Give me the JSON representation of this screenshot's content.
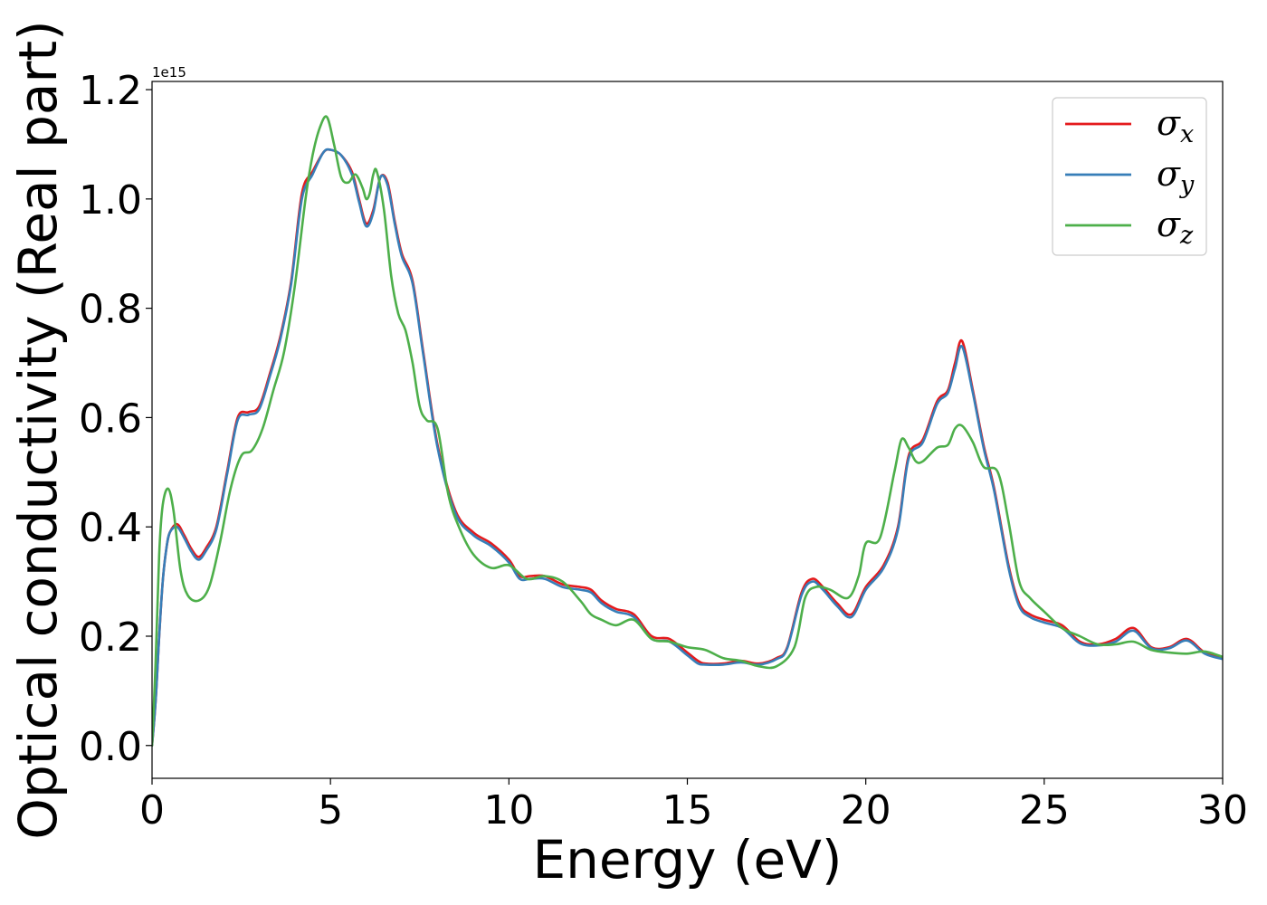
{
  "chart_data": {
    "type": "line",
    "xlabel": "Energy (eV)",
    "ylabel": "Optical conductivity (Real part)",
    "y_offset_text": "1e15",
    "y_scale_factor": 1000000000000000.0,
    "xlim": [
      0,
      30
    ],
    "ylim": [
      -0.06,
      1.215
    ],
    "x_ticks": [
      0,
      5,
      10,
      15,
      20,
      25,
      30
    ],
    "x_tick_labels": [
      "0",
      "5",
      "10",
      "15",
      "20",
      "25",
      "30"
    ],
    "y_ticks": [
      0.0,
      0.2,
      0.4,
      0.6,
      0.8,
      1.0,
      1.2
    ],
    "y_tick_labels": [
      "0.0",
      "0.2",
      "0.4",
      "0.6",
      "0.8",
      "1.0",
      "1.2"
    ],
    "grid": false,
    "legend_position": "top-right",
    "series": [
      {
        "name": "σx",
        "symbol": "σ",
        "subscript": "x",
        "color": "#e41a1c",
        "x": [
          0,
          0.1,
          0.2,
          0.3,
          0.4,
          0.5,
          0.7,
          0.9,
          1.1,
          1.3,
          1.5,
          1.8,
          2.1,
          2.4,
          2.7,
          3.0,
          3.3,
          3.6,
          3.9,
          4.2,
          4.5,
          4.8,
          5.0,
          5.3,
          5.6,
          5.8,
          6.0,
          6.2,
          6.4,
          6.6,
          6.8,
          7.0,
          7.3,
          7.6,
          8.0,
          8.5,
          9.0,
          9.5,
          10.0,
          10.3,
          10.6,
          11.0,
          11.5,
          12.0,
          12.3,
          12.6,
          13.0,
          13.5,
          14.0,
          14.5,
          15.0,
          15.3,
          15.5,
          16.0,
          16.5,
          17.0,
          17.5,
          17.8,
          18.2,
          18.5,
          18.8,
          19.2,
          19.6,
          20.0,
          20.5,
          20.9,
          21.2,
          21.6,
          22.0,
          22.3,
          22.5,
          22.7,
          23.0,
          23.3,
          23.6,
          24.0,
          24.3,
          24.6,
          25.0,
          25.5,
          26.0,
          26.5,
          27.0,
          27.5,
          28.0,
          28.5,
          29.0,
          29.5,
          30.0
        ],
        "y": [
          0.0,
          0.08,
          0.2,
          0.3,
          0.36,
          0.39,
          0.405,
          0.385,
          0.36,
          0.345,
          0.36,
          0.4,
          0.5,
          0.6,
          0.61,
          0.62,
          0.68,
          0.75,
          0.85,
          1.01,
          1.05,
          1.085,
          1.09,
          1.08,
          1.05,
          1.0,
          0.955,
          0.98,
          1.04,
          1.03,
          0.96,
          0.9,
          0.85,
          0.72,
          0.55,
          0.43,
          0.39,
          0.37,
          0.34,
          0.31,
          0.31,
          0.31,
          0.295,
          0.29,
          0.285,
          0.265,
          0.25,
          0.24,
          0.2,
          0.195,
          0.17,
          0.155,
          0.15,
          0.15,
          0.155,
          0.15,
          0.16,
          0.18,
          0.28,
          0.305,
          0.29,
          0.26,
          0.24,
          0.29,
          0.33,
          0.4,
          0.53,
          0.56,
          0.63,
          0.65,
          0.7,
          0.74,
          0.65,
          0.55,
          0.47,
          0.33,
          0.26,
          0.24,
          0.23,
          0.22,
          0.19,
          0.185,
          0.195,
          0.215,
          0.18,
          0.18,
          0.195,
          0.17,
          0.16
        ]
      },
      {
        "name": "σy",
        "symbol": "σ",
        "subscript": "y",
        "color": "#377eb8",
        "x": [
          0,
          0.1,
          0.2,
          0.3,
          0.4,
          0.5,
          0.7,
          0.9,
          1.1,
          1.3,
          1.5,
          1.8,
          2.1,
          2.4,
          2.7,
          3.0,
          3.3,
          3.6,
          3.9,
          4.2,
          4.5,
          4.8,
          5.0,
          5.3,
          5.6,
          5.8,
          6.0,
          6.2,
          6.4,
          6.6,
          6.8,
          7.0,
          7.3,
          7.6,
          8.0,
          8.5,
          9.0,
          9.5,
          10.0,
          10.3,
          10.6,
          11.0,
          11.5,
          12.0,
          12.3,
          12.6,
          13.0,
          13.5,
          14.0,
          14.5,
          15.0,
          15.3,
          15.5,
          16.0,
          16.5,
          17.0,
          17.5,
          17.8,
          18.2,
          18.5,
          18.8,
          19.2,
          19.6,
          20.0,
          20.5,
          20.9,
          21.2,
          21.6,
          22.0,
          22.3,
          22.5,
          22.7,
          23.0,
          23.3,
          23.6,
          24.0,
          24.3,
          24.6,
          25.0,
          25.5,
          26.0,
          26.5,
          27.0,
          27.5,
          28.0,
          28.5,
          29.0,
          29.5,
          30.0
        ],
        "y": [
          0.0,
          0.08,
          0.2,
          0.3,
          0.36,
          0.39,
          0.4,
          0.38,
          0.355,
          0.34,
          0.355,
          0.395,
          0.495,
          0.595,
          0.605,
          0.615,
          0.675,
          0.745,
          0.845,
          1.0,
          1.045,
          1.085,
          1.09,
          1.08,
          1.045,
          0.995,
          0.95,
          0.975,
          1.04,
          1.025,
          0.955,
          0.895,
          0.845,
          0.715,
          0.545,
          0.425,
          0.385,
          0.365,
          0.335,
          0.305,
          0.305,
          0.305,
          0.29,
          0.285,
          0.28,
          0.26,
          0.245,
          0.235,
          0.195,
          0.19,
          0.165,
          0.15,
          0.148,
          0.148,
          0.152,
          0.148,
          0.158,
          0.178,
          0.275,
          0.3,
          0.285,
          0.255,
          0.235,
          0.285,
          0.325,
          0.395,
          0.525,
          0.555,
          0.625,
          0.645,
          0.69,
          0.73,
          0.645,
          0.545,
          0.465,
          0.325,
          0.255,
          0.235,
          0.225,
          0.215,
          0.187,
          0.183,
          0.19,
          0.21,
          0.178,
          0.178,
          0.192,
          0.168,
          0.158
        ]
      },
      {
        "name": "σz",
        "symbol": "σ",
        "subscript": "z",
        "color": "#4daf4a",
        "x": [
          0,
          0.1,
          0.2,
          0.3,
          0.45,
          0.6,
          0.8,
          1.0,
          1.3,
          1.6,
          1.9,
          2.2,
          2.5,
          2.8,
          3.1,
          3.4,
          3.7,
          4.0,
          4.3,
          4.5,
          4.7,
          4.9,
          5.1,
          5.3,
          5.5,
          5.7,
          5.9,
          6.0,
          6.1,
          6.2,
          6.3,
          6.5,
          6.7,
          6.9,
          7.1,
          7.3,
          7.5,
          7.7,
          8.0,
          8.3,
          8.6,
          9.0,
          9.5,
          10.0,
          10.5,
          11.0,
          11.5,
          12.0,
          12.3,
          12.6,
          13.0,
          13.5,
          14.0,
          14.5,
          15.0,
          15.5,
          16.0,
          16.5,
          17.0,
          17.5,
          18.0,
          18.3,
          18.6,
          19.0,
          19.5,
          19.8,
          20.0,
          20.4,
          20.8,
          21.0,
          21.2,
          21.4,
          21.6,
          22.0,
          22.3,
          22.5,
          22.7,
          23.0,
          23.3,
          23.7,
          24.0,
          24.3,
          24.6,
          25.0,
          25.5,
          26.0,
          26.5,
          27.0,
          27.5,
          28.0,
          28.5,
          29.0,
          29.5,
          30.0
        ],
        "y": [
          0.0,
          0.15,
          0.35,
          0.44,
          0.47,
          0.43,
          0.32,
          0.275,
          0.265,
          0.29,
          0.37,
          0.47,
          0.53,
          0.54,
          0.58,
          0.65,
          0.72,
          0.84,
          1.0,
          1.08,
          1.13,
          1.15,
          1.1,
          1.04,
          1.03,
          1.045,
          1.02,
          1.0,
          1.01,
          1.045,
          1.05,
          0.98,
          0.86,
          0.79,
          0.76,
          0.7,
          0.62,
          0.595,
          0.58,
          0.46,
          0.4,
          0.35,
          0.325,
          0.33,
          0.305,
          0.31,
          0.3,
          0.265,
          0.24,
          0.23,
          0.22,
          0.23,
          0.195,
          0.19,
          0.18,
          0.175,
          0.16,
          0.155,
          0.145,
          0.145,
          0.18,
          0.27,
          0.29,
          0.285,
          0.27,
          0.31,
          0.37,
          0.38,
          0.5,
          0.56,
          0.545,
          0.52,
          0.52,
          0.545,
          0.55,
          0.58,
          0.585,
          0.555,
          0.51,
          0.5,
          0.41,
          0.3,
          0.27,
          0.245,
          0.215,
          0.2,
          0.185,
          0.185,
          0.19,
          0.175,
          0.17,
          0.168,
          0.172,
          0.162
        ]
      }
    ]
  }
}
